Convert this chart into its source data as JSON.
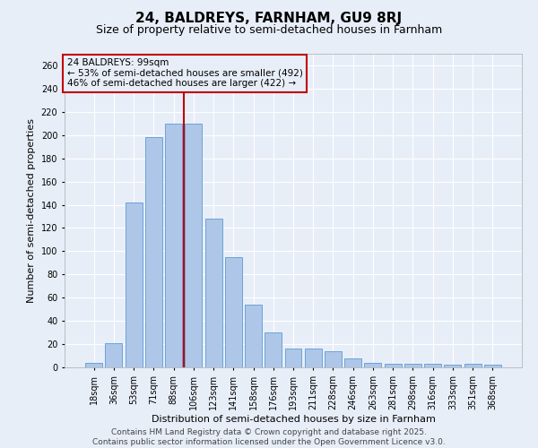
{
  "title1": "24, BALDREYS, FARNHAM, GU9 8RJ",
  "title2": "Size of property relative to semi-detached houses in Farnham",
  "xlabel": "Distribution of semi-detached houses by size in Farnham",
  "ylabel": "Number of semi-detached properties",
  "categories": [
    "18sqm",
    "36sqm",
    "53sqm",
    "71sqm",
    "88sqm",
    "106sqm",
    "123sqm",
    "141sqm",
    "158sqm",
    "176sqm",
    "193sqm",
    "211sqm",
    "228sqm",
    "246sqm",
    "263sqm",
    "281sqm",
    "298sqm",
    "316sqm",
    "333sqm",
    "351sqm",
    "368sqm"
  ],
  "values": [
    4,
    21,
    142,
    198,
    210,
    210,
    128,
    95,
    54,
    30,
    16,
    16,
    14,
    8,
    4,
    3,
    3,
    3,
    2,
    3,
    2
  ],
  "bar_color": "#aec6e8",
  "bar_edge_color": "#5b9bd5",
  "vline_index": 4,
  "vline_color": "#c00000",
  "annotation_title": "24 BALDREYS: 99sqm",
  "annotation_line1": "← 53% of semi-detached houses are smaller (492)",
  "annotation_line2": "46% of semi-detached houses are larger (422) →",
  "annotation_box_color": "#c00000",
  "ylim": [
    0,
    270
  ],
  "yticks": [
    0,
    20,
    40,
    60,
    80,
    100,
    120,
    140,
    160,
    180,
    200,
    220,
    240,
    260
  ],
  "footer1": "Contains HM Land Registry data © Crown copyright and database right 2025.",
  "footer2": "Contains public sector information licensed under the Open Government Licence v3.0.",
  "background_color": "#e8eef8",
  "grid_color": "#ffffff",
  "title1_fontsize": 11,
  "title2_fontsize": 9,
  "xlabel_fontsize": 8,
  "ylabel_fontsize": 8,
  "tick_fontsize": 7,
  "footer_fontsize": 6.5,
  "annotation_fontsize": 7.5
}
